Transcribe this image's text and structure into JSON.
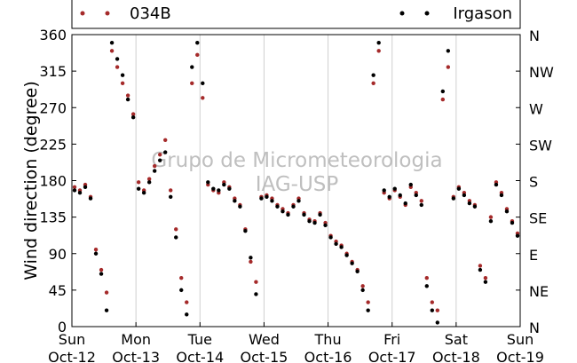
{
  "chart_data": {
    "type": "scatter",
    "title": "",
    "ylabel": "Wind direction (degree)",
    "xlabel": "",
    "ylim": [
      0,
      360
    ],
    "yticks": [
      0,
      45,
      90,
      135,
      180,
      225,
      270,
      315,
      360
    ],
    "y2ticks": [
      "N",
      "NE",
      "E",
      "SE",
      "S",
      "SW",
      "W",
      "NW",
      "N"
    ],
    "xlim": [
      "2014-10-12",
      "2014-10-19"
    ],
    "xticks": [
      {
        "day": "Sun",
        "date": "Oct-12"
      },
      {
        "day": "Mon",
        "date": "Oct-13"
      },
      {
        "day": "Tue",
        "date": "Oct-14"
      },
      {
        "day": "Wed",
        "date": "Oct-15"
      },
      {
        "day": "Thu",
        "date": "Oct-16"
      },
      {
        "day": "Fri",
        "date": "Oct-17"
      },
      {
        "day": "Sat",
        "date": "Oct-18"
      },
      {
        "day": "Sun",
        "date": "Oct-19"
      }
    ],
    "grid": "vertical",
    "legend": "top",
    "watermark": [
      "Grupo de Micrometeorologia",
      "IAG-USP"
    ],
    "series": [
      {
        "name": "034B",
        "color": "#a52a2a",
        "x": [
          "2014-10-12 01:00",
          "2014-10-12 03:00",
          "2014-10-12 05:00",
          "2014-10-12 07:00",
          "2014-10-12 09:00",
          "2014-10-12 11:00",
          "2014-10-12 13:00",
          "2014-10-12 15:00",
          "2014-10-12 17:00",
          "2014-10-12 19:00",
          "2014-10-12 21:00",
          "2014-10-12 23:00",
          "2014-10-13 01:00",
          "2014-10-13 03:00",
          "2014-10-13 05:00",
          "2014-10-13 07:00",
          "2014-10-13 09:00",
          "2014-10-13 11:00",
          "2014-10-13 13:00",
          "2014-10-13 15:00",
          "2014-10-13 17:00",
          "2014-10-13 19:00",
          "2014-10-13 21:00",
          "2014-10-13 23:00",
          "2014-10-14 01:00",
          "2014-10-14 03:00",
          "2014-10-14 05:00",
          "2014-10-14 07:00",
          "2014-10-14 09:00",
          "2014-10-14 11:00",
          "2014-10-14 13:00",
          "2014-10-14 15:00",
          "2014-10-14 17:00",
          "2014-10-14 19:00",
          "2014-10-14 21:00",
          "2014-10-14 23:00",
          "2014-10-15 01:00",
          "2014-10-15 03:00",
          "2014-10-15 05:00",
          "2014-10-15 07:00",
          "2014-10-15 09:00",
          "2014-10-15 11:00",
          "2014-10-15 13:00",
          "2014-10-15 15:00",
          "2014-10-15 17:00",
          "2014-10-15 19:00",
          "2014-10-15 21:00",
          "2014-10-15 23:00",
          "2014-10-16 01:00",
          "2014-10-16 03:00",
          "2014-10-16 05:00",
          "2014-10-16 07:00",
          "2014-10-16 09:00",
          "2014-10-16 11:00",
          "2014-10-16 13:00",
          "2014-10-16 15:00",
          "2014-10-16 17:00",
          "2014-10-16 19:00",
          "2014-10-16 21:00",
          "2014-10-16 23:00",
          "2014-10-17 01:00",
          "2014-10-17 03:00",
          "2014-10-17 05:00",
          "2014-10-17 07:00",
          "2014-10-17 09:00",
          "2014-10-17 11:00",
          "2014-10-17 13:00",
          "2014-10-17 15:00",
          "2014-10-17 17:00",
          "2014-10-17 19:00",
          "2014-10-17 21:00",
          "2014-10-17 23:00",
          "2014-10-18 01:00",
          "2014-10-18 03:00",
          "2014-10-18 05:00",
          "2014-10-18 07:00",
          "2014-10-18 09:00",
          "2014-10-18 11:00",
          "2014-10-18 13:00",
          "2014-10-18 15:00",
          "2014-10-18 17:00",
          "2014-10-18 19:00",
          "2014-10-18 21:00",
          "2014-10-18 23:00"
        ],
        "y": [
          172,
          168,
          175,
          160,
          95,
          70,
          42,
          340,
          320,
          300,
          285,
          262,
          178,
          168,
          182,
          198,
          212,
          230,
          168,
          120,
          60,
          30,
          300,
          335,
          282,
          175,
          168,
          165,
          178,
          172,
          158,
          150,
          120,
          80,
          55,
          160,
          162,
          158,
          150,
          145,
          140,
          150,
          158,
          140,
          132,
          130,
          140,
          128,
          112,
          105,
          100,
          90,
          80,
          70,
          50,
          30,
          300,
          340,
          165,
          158,
          168,
          160,
          150,
          172,
          165,
          155,
          60,
          30,
          20,
          280,
          320,
          160,
          172,
          165,
          155,
          150,
          75,
          60,
          135,
          178,
          165,
          145,
          130,
          115
        ]
      },
      {
        "name": "Irgason",
        "color": "#000000",
        "x": [
          "2014-10-12 01:00",
          "2014-10-12 03:00",
          "2014-10-12 05:00",
          "2014-10-12 07:00",
          "2014-10-12 09:00",
          "2014-10-12 11:00",
          "2014-10-12 13:00",
          "2014-10-12 15:00",
          "2014-10-12 17:00",
          "2014-10-12 19:00",
          "2014-10-12 21:00",
          "2014-10-12 23:00",
          "2014-10-13 01:00",
          "2014-10-13 03:00",
          "2014-10-13 05:00",
          "2014-10-13 07:00",
          "2014-10-13 09:00",
          "2014-10-13 11:00",
          "2014-10-13 13:00",
          "2014-10-13 15:00",
          "2014-10-13 17:00",
          "2014-10-13 19:00",
          "2014-10-13 21:00",
          "2014-10-13 23:00",
          "2014-10-14 01:00",
          "2014-10-14 03:00",
          "2014-10-14 05:00",
          "2014-10-14 07:00",
          "2014-10-14 09:00",
          "2014-10-14 11:00",
          "2014-10-14 13:00",
          "2014-10-14 15:00",
          "2014-10-14 17:00",
          "2014-10-14 19:00",
          "2014-10-14 21:00",
          "2014-10-14 23:00",
          "2014-10-15 01:00",
          "2014-10-15 03:00",
          "2014-10-15 05:00",
          "2014-10-15 07:00",
          "2014-10-15 09:00",
          "2014-10-15 11:00",
          "2014-10-15 13:00",
          "2014-10-15 15:00",
          "2014-10-15 17:00",
          "2014-10-15 19:00",
          "2014-10-15 21:00",
          "2014-10-15 23:00",
          "2014-10-16 01:00",
          "2014-10-16 03:00",
          "2014-10-16 05:00",
          "2014-10-16 07:00",
          "2014-10-16 09:00",
          "2014-10-16 11:00",
          "2014-10-16 13:00",
          "2014-10-16 15:00",
          "2014-10-16 17:00",
          "2014-10-16 19:00",
          "2014-10-16 21:00",
          "2014-10-16 23:00",
          "2014-10-17 01:00",
          "2014-10-17 03:00",
          "2014-10-17 05:00",
          "2014-10-17 07:00",
          "2014-10-17 09:00",
          "2014-10-17 11:00",
          "2014-10-17 13:00",
          "2014-10-17 15:00",
          "2014-10-17 17:00",
          "2014-10-17 19:00",
          "2014-10-17 21:00",
          "2014-10-17 23:00",
          "2014-10-18 01:00",
          "2014-10-18 03:00",
          "2014-10-18 05:00",
          "2014-10-18 07:00",
          "2014-10-18 09:00",
          "2014-10-18 11:00",
          "2014-10-18 13:00",
          "2014-10-18 15:00",
          "2014-10-18 17:00",
          "2014-10-18 19:00",
          "2014-10-18 21:00",
          "2014-10-18 23:00"
        ],
        "y": [
          168,
          165,
          172,
          158,
          90,
          65,
          20,
          350,
          330,
          310,
          280,
          258,
          170,
          165,
          178,
          192,
          205,
          215,
          160,
          110,
          45,
          15,
          320,
          350,
          300,
          178,
          170,
          168,
          175,
          170,
          155,
          148,
          118,
          85,
          40,
          158,
          160,
          155,
          148,
          142,
          138,
          148,
          155,
          138,
          130,
          128,
          138,
          125,
          110,
          102,
          98,
          88,
          78,
          68,
          45,
          20,
          310,
          350,
          168,
          160,
          170,
          162,
          152,
          175,
          162,
          150,
          50,
          20,
          5,
          290,
          340,
          158,
          170,
          162,
          152,
          148,
          70,
          55,
          130,
          175,
          162,
          142,
          128,
          112
        ]
      }
    ]
  }
}
